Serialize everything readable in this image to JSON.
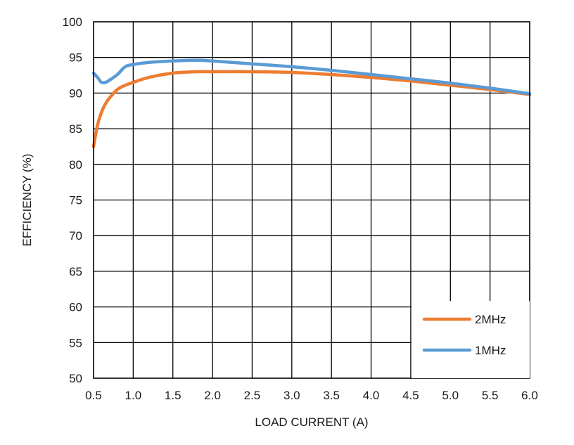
{
  "chart_data": {
    "type": "line",
    "xlabel": "LOAD CURRENT (A)",
    "ylabel": "EFFICIENCY (%)",
    "xlim": [
      0.5,
      6.0
    ],
    "ylim": [
      50,
      100
    ],
    "x_ticks": [
      "0.5",
      "1.0",
      "1.5",
      "2.0",
      "2.5",
      "3.0",
      "3.5",
      "4.0",
      "4.5",
      "5.0",
      "5.5",
      "6.0"
    ],
    "y_ticks": [
      "50",
      "55",
      "60",
      "65",
      "70",
      "75",
      "80",
      "85",
      "90",
      "95",
      "100"
    ],
    "grid": true,
    "legend_position": "bottom-right",
    "series": [
      {
        "name": "2MHz",
        "color": "#ED7D31",
        "x": [
          0.5,
          0.55,
          0.6,
          0.65,
          0.7,
          0.8,
          0.9,
          1.0,
          1.2,
          1.5,
          1.8,
          2.0,
          2.5,
          3.0,
          3.5,
          4.0,
          4.5,
          5.0,
          5.5,
          6.0
        ],
        "y": [
          82.5,
          85.5,
          87.3,
          88.5,
          89.3,
          90.5,
          91.1,
          91.5,
          92.2,
          92.8,
          93.0,
          93.0,
          93.0,
          92.9,
          92.6,
          92.2,
          91.7,
          91.1,
          90.5,
          89.8
        ]
      },
      {
        "name": "1MHz",
        "color": "#5B9BD5",
        "x": [
          0.5,
          0.55,
          0.6,
          0.65,
          0.7,
          0.8,
          0.9,
          1.0,
          1.2,
          1.5,
          1.8,
          2.0,
          2.5,
          3.0,
          3.5,
          4.0,
          4.5,
          5.0,
          5.5,
          6.0
        ],
        "y": [
          92.8,
          92.2,
          91.5,
          91.5,
          91.8,
          92.6,
          93.7,
          94.0,
          94.3,
          94.5,
          94.6,
          94.5,
          94.1,
          93.7,
          93.2,
          92.6,
          92.0,
          91.4,
          90.7,
          89.9
        ]
      }
    ]
  }
}
